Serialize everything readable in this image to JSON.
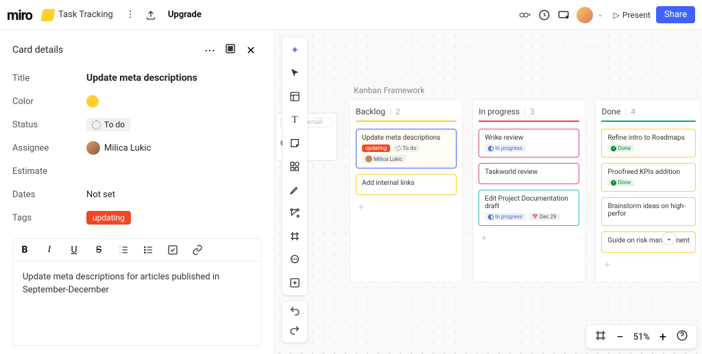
{
  "header": {
    "logo": "miro",
    "board_name": "Task Tracking",
    "upgrade": "Upgrade",
    "present": "Present",
    "share": "Share"
  },
  "panel": {
    "title": "Card details",
    "fields": {
      "title_label": "Title",
      "title_value": "Update meta descriptions",
      "color_label": "Color",
      "color_hex": "#ffd02f",
      "status_label": "Status",
      "status_value": "To do",
      "assignee_label": "Assignee",
      "assignee_value": "Milica Lukic",
      "estimate_label": "Estimate",
      "estimate_value": "",
      "dates_label": "Dates",
      "dates_value": "Not set",
      "tags_label": "Tags",
      "tag_value": "updating"
    },
    "description": "Update meta descriptions for articles published in September-December"
  },
  "kanban": {
    "frame_title": "Kanban Framework",
    "columns": [
      {
        "name": "Backlog",
        "count": "2",
        "line_color": "#ffd02f",
        "cards": [
          {
            "title": "Update meta descriptions",
            "border": "#4262ff",
            "bg": "#fffef4",
            "tags": [
              {
                "text": "updating",
                "cls": "kred"
              },
              {
                "text": "To do",
                "cls": "kstat",
                "dashed": true
              },
              {
                "text": "Milica Lukic",
                "cls": "kstat",
                "avatar": true
              }
            ]
          },
          {
            "title": "Add internal links",
            "border": "#ffd02f",
            "bg": "#ffffff",
            "tags": []
          }
        ]
      },
      {
        "name": "In progress",
        "count": "3",
        "line_color": "#f24726",
        "cards": [
          {
            "title": "Wrike review",
            "border": "#e83f8c",
            "bg": "#ffffff",
            "tags": [
              {
                "text": "In progress",
                "cls": "kstat kblue",
                "half": true
              }
            ]
          },
          {
            "title": "Taskworld review",
            "border": "#e83f8c",
            "bg": "#ffffff",
            "tags": []
          },
          {
            "title": "Edit Project Documentation draft",
            "border": "#16c7b0",
            "bg": "#ffffff",
            "tags": [
              {
                "text": "In progress",
                "cls": "kstat kblue",
                "half": true
              },
              {
                "text": "Dec 29",
                "cls": "kstat",
                "date": true
              }
            ]
          }
        ]
      },
      {
        "name": "Done",
        "count": "4",
        "line_color": "#0ca789",
        "cards": [
          {
            "title": "Refine intro to Roadmaps",
            "border": "#ffd02f",
            "bg": "#ffffff",
            "tags": [
              {
                "text": "Done",
                "cls": "kstat kgreen",
                "check": true
              }
            ]
          },
          {
            "title": "Proofreed KPIs addition",
            "border": "#ffd02f",
            "bg": "#ffffff",
            "tags": [
              {
                "text": "Done",
                "cls": "kstat kgreen",
                "check": true
              }
            ]
          },
          {
            "title": "Brainstorm ideas on high-perfor",
            "border": "#ffd02f",
            "bg": "#ffffff",
            "tags": [],
            "truncated": true
          },
          {
            "title": "Guide on risk management",
            "border": "#ffd02f",
            "bg": "#ffffff",
            "tags": []
          }
        ]
      }
    ]
  },
  "zoom": {
    "level": "51%"
  },
  "peek_placeholder": "name or email"
}
